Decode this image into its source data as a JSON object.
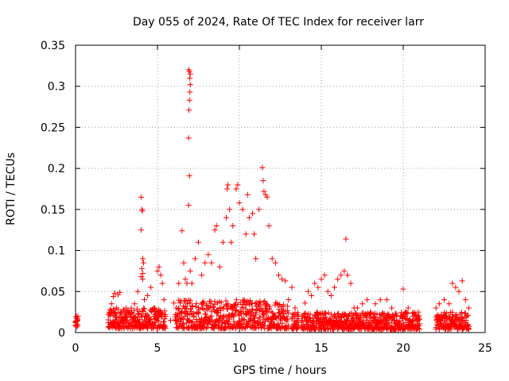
{
  "chart_data": {
    "type": "scatter",
    "title": "Day 055 of 2024, Rate Of TEC Index for receiver larr",
    "xlabel": "GPS time / hours",
    "ylabel": "ROTI / TECUs",
    "xlim": [
      0,
      25
    ],
    "ylim": [
      0,
      0.35
    ],
    "xticks": [
      "0",
      "5",
      "10",
      "15",
      "20",
      "25"
    ],
    "yticks": [
      "0",
      "0.05",
      "0.1",
      "0.15",
      "0.2",
      "0.25",
      "0.3",
      "0.35"
    ],
    "grid": true,
    "marker": "plus",
    "marker_color": "#ff0000",
    "series": [
      {
        "name": "ROTI",
        "points": [
          [
            0.0,
            0.012
          ],
          [
            0.05,
            0.018
          ],
          [
            0.1,
            0.015
          ],
          [
            0.15,
            0.02
          ],
          [
            0.0,
            0.009
          ],
          [
            0.1,
            0.01
          ],
          [
            0.05,
            0.014
          ],
          [
            2.0,
            0.012
          ],
          [
            2.1,
            0.028
          ],
          [
            2.2,
            0.035
          ],
          [
            2.3,
            0.044
          ],
          [
            2.4,
            0.048
          ],
          [
            2.5,
            0.03
          ],
          [
            2.6,
            0.046
          ],
          [
            2.7,
            0.049
          ],
          [
            2.8,
            0.025
          ],
          [
            3.0,
            0.02
          ],
          [
            3.2,
            0.026
          ],
          [
            3.4,
            0.022
          ],
          [
            3.6,
            0.035
          ],
          [
            3.8,
            0.05
          ],
          [
            4.0,
            0.165
          ],
          [
            4.05,
            0.15
          ],
          [
            4.08,
            0.148
          ],
          [
            4.0,
            0.125
          ],
          [
            4.1,
            0.09
          ],
          [
            4.15,
            0.085
          ],
          [
            4.05,
            0.078
          ],
          [
            4.1,
            0.072
          ],
          [
            4.0,
            0.068
          ],
          [
            4.1,
            0.065
          ],
          [
            4.2,
            0.04
          ],
          [
            4.4,
            0.045
          ],
          [
            4.6,
            0.055
          ],
          [
            4.8,
            0.03
          ],
          [
            5.0,
            0.075
          ],
          [
            5.1,
            0.08
          ],
          [
            5.2,
            0.07
          ],
          [
            5.3,
            0.06
          ],
          [
            5.4,
            0.04
          ],
          [
            5.5,
            0.02
          ],
          [
            5.8,
            0.015
          ],
          [
            6.0,
            0.036
          ],
          [
            6.1,
            0.015
          ],
          [
            6.3,
            0.06
          ],
          [
            6.5,
            0.124
          ],
          [
            6.6,
            0.085
          ],
          [
            6.7,
            0.065
          ],
          [
            6.8,
            0.06
          ],
          [
            6.9,
            0.32
          ],
          [
            6.95,
            0.318
          ],
          [
            7.0,
            0.315
          ],
          [
            6.97,
            0.31
          ],
          [
            7.0,
            0.302
          ],
          [
            6.98,
            0.293
          ],
          [
            6.95,
            0.283
          ],
          [
            6.92,
            0.271
          ],
          [
            6.9,
            0.237
          ],
          [
            6.95,
            0.191
          ],
          [
            6.9,
            0.155
          ],
          [
            7.0,
            0.075
          ],
          [
            7.1,
            0.06
          ],
          [
            7.3,
            0.09
          ],
          [
            7.5,
            0.11
          ],
          [
            7.7,
            0.07
          ],
          [
            7.9,
            0.085
          ],
          [
            8.1,
            0.095
          ],
          [
            8.3,
            0.085
          ],
          [
            8.5,
            0.125
          ],
          [
            8.6,
            0.13
          ],
          [
            8.8,
            0.08
          ],
          [
            9.0,
            0.11
          ],
          [
            9.2,
            0.14
          ],
          [
            9.25,
            0.175
          ],
          [
            9.3,
            0.18
          ],
          [
            9.4,
            0.15
          ],
          [
            9.5,
            0.11
          ],
          [
            9.6,
            0.13
          ],
          [
            9.8,
            0.175
          ],
          [
            9.9,
            0.18
          ],
          [
            10.0,
            0.158
          ],
          [
            10.2,
            0.15
          ],
          [
            10.4,
            0.12
          ],
          [
            10.5,
            0.168
          ],
          [
            10.6,
            0.14
          ],
          [
            10.8,
            0.145
          ],
          [
            10.9,
            0.12
          ],
          [
            11.0,
            0.09
          ],
          [
            11.2,
            0.15
          ],
          [
            11.4,
            0.201
          ],
          [
            11.45,
            0.185
          ],
          [
            11.5,
            0.172
          ],
          [
            11.6,
            0.168
          ],
          [
            11.7,
            0.165
          ],
          [
            11.8,
            0.13
          ],
          [
            12.0,
            0.09
          ],
          [
            12.2,
            0.085
          ],
          [
            12.4,
            0.07
          ],
          [
            12.6,
            0.065
          ],
          [
            12.8,
            0.063
          ],
          [
            13.0,
            0.04
          ],
          [
            13.2,
            0.055
          ],
          [
            13.4,
            0.03
          ],
          [
            13.6,
            0.02
          ],
          [
            13.8,
            0.02
          ],
          [
            14.0,
            0.036
          ],
          [
            14.2,
            0.05
          ],
          [
            14.4,
            0.045
          ],
          [
            14.6,
            0.06
          ],
          [
            14.8,
            0.055
          ],
          [
            15.0,
            0.065
          ],
          [
            15.2,
            0.07
          ],
          [
            15.4,
            0.05
          ],
          [
            15.6,
            0.045
          ],
          [
            15.8,
            0.055
          ],
          [
            16.0,
            0.065
          ],
          [
            16.2,
            0.07
          ],
          [
            16.4,
            0.075
          ],
          [
            16.5,
            0.114
          ],
          [
            16.6,
            0.07
          ],
          [
            16.8,
            0.06
          ],
          [
            17.0,
            0.03
          ],
          [
            17.2,
            0.03
          ],
          [
            17.5,
            0.035
          ],
          [
            17.8,
            0.04
          ],
          [
            18.0,
            0.025
          ],
          [
            18.3,
            0.035
          ],
          [
            18.6,
            0.04
          ],
          [
            19.0,
            0.04
          ],
          [
            19.3,
            0.03
          ],
          [
            19.6,
            0.02
          ],
          [
            20.0,
            0.053
          ],
          [
            20.3,
            0.03
          ],
          [
            20.6,
            0.02
          ],
          [
            20.9,
            0.015
          ],
          [
            22.0,
            0.03
          ],
          [
            22.2,
            0.035
          ],
          [
            22.5,
            0.04
          ],
          [
            22.8,
            0.035
          ],
          [
            23.0,
            0.06
          ],
          [
            23.2,
            0.055
          ],
          [
            23.4,
            0.05
          ],
          [
            23.6,
            0.063
          ],
          [
            23.8,
            0.04
          ],
          [
            24.0,
            0.03
          ]
        ]
      }
    ],
    "bands": [
      {
        "x_start": 0.0,
        "x_end": 0.15,
        "low": 0.006,
        "high": 0.02
      },
      {
        "x_start": 2.0,
        "x_end": 5.5,
        "low": 0.005,
        "high": 0.03
      },
      {
        "x_start": 6.1,
        "x_end": 13.0,
        "low": 0.005,
        "high": 0.04
      },
      {
        "x_start": 13.2,
        "x_end": 13.6,
        "low": 0.004,
        "high": 0.025
      },
      {
        "x_start": 13.8,
        "x_end": 21.0,
        "low": 0.004,
        "high": 0.025
      },
      {
        "x_start": 22.0,
        "x_end": 24.0,
        "low": 0.004,
        "high": 0.025
      }
    ]
  }
}
